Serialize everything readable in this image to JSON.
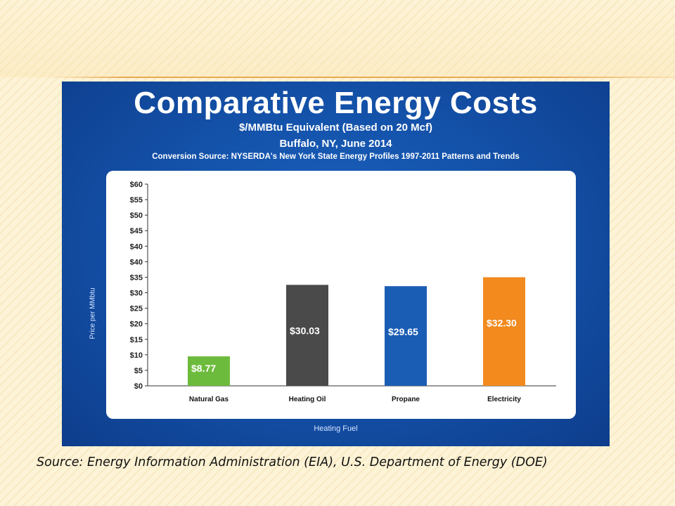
{
  "slide": {
    "source": "Source: Energy Information Administration (EIA), U.S. Department of Energy (DOE)"
  },
  "chart_data": {
    "type": "bar",
    "title": "Comparative Energy Costs",
    "subtitle": "$/MMBtu Equivalent (Based on 20 Mcf)",
    "location_date": "Buffalo, NY, June 2014",
    "note": "Conversion Source: NYSERDA's New York State Energy Profiles 1997-2011 Patterns and Trends",
    "xlabel": "Heating Fuel",
    "ylabel": "Price per MMbtu",
    "categories": [
      "Natural Gas",
      "Heating Oil",
      "Propane",
      "Electricity"
    ],
    "values": [
      8.77,
      30.03,
      29.65,
      32.3
    ],
    "value_labels": [
      "$8.77",
      "$30.03",
      "$29.65",
      "$32.30"
    ],
    "bar_colors": [
      "#6dbb3c",
      "#4a4a4a",
      "#1a5db4",
      "#f28a1e"
    ],
    "ytick_labels": [
      "$0",
      "$5",
      "$10",
      "$15",
      "$20",
      "$25",
      "$30",
      "$35",
      "$40",
      "$40",
      "$45",
      "$50",
      "$55",
      "$60"
    ],
    "ylim": [
      0,
      60
    ],
    "grid": false
  }
}
